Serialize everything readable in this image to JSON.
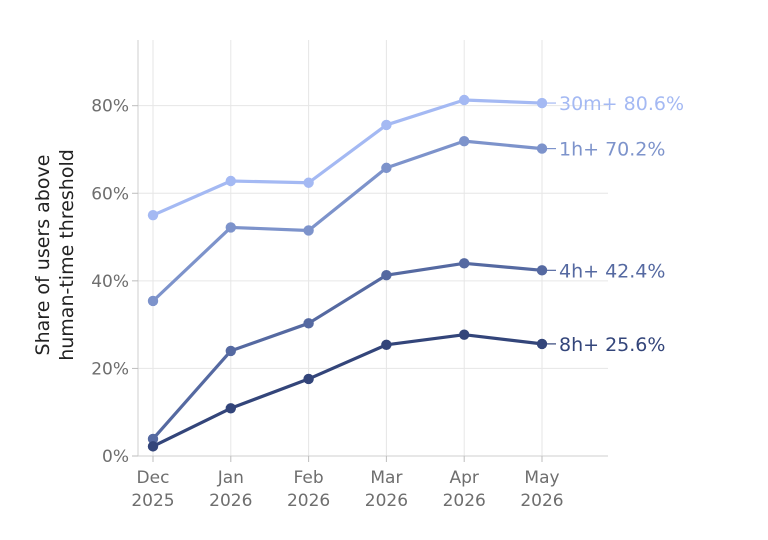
{
  "chart_data": {
    "type": "line",
    "title": "",
    "xlabel": "",
    "ylabel_lines": [
      "Share of users above",
      "human-time threshold"
    ],
    "categories": [
      [
        "Dec",
        "2025"
      ],
      [
        "Jan",
        "2026"
      ],
      [
        "Feb",
        "2026"
      ],
      [
        "Mar",
        "2026"
      ],
      [
        "Apr",
        "2026"
      ],
      [
        "May",
        "2026"
      ]
    ],
    "ylim": [
      0,
      95
    ],
    "yticks": [
      0,
      20,
      40,
      60,
      80
    ],
    "ytick_labels": [
      "0%",
      "20%",
      "40%",
      "60%",
      "80%"
    ],
    "grid": true,
    "legend": "end-of-line labels",
    "series": [
      {
        "name": "30m+",
        "end_label": "30m+ 80.6%",
        "color": "#a4b9f3",
        "values": [
          55.0,
          62.8,
          62.4,
          75.6,
          81.3,
          80.6
        ]
      },
      {
        "name": "1h+",
        "end_label": "1h+ 70.2%",
        "color": "#7d93cb",
        "values": [
          35.4,
          52.2,
          51.5,
          65.8,
          71.9,
          70.2
        ]
      },
      {
        "name": "4h+",
        "end_label": "4h+ 42.4%",
        "color": "#5569a1",
        "values": [
          3.9,
          24.0,
          30.3,
          41.3,
          44.0,
          42.4
        ]
      },
      {
        "name": "8h+",
        "end_label": "8h+ 25.6%",
        "color": "#33457a",
        "values": [
          2.2,
          10.9,
          17.6,
          25.4,
          27.7,
          25.6
        ]
      }
    ]
  }
}
